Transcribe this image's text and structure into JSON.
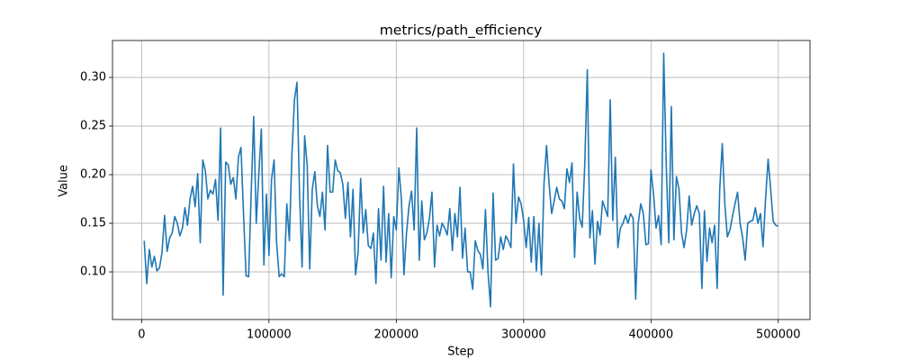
{
  "chart_data": {
    "type": "line",
    "title": "metrics/path_efficiency",
    "xlabel": "Step",
    "ylabel": "Value",
    "color": "#1f77b4",
    "grid": true,
    "xlim": [
      -22900,
      524900
    ],
    "ylim": [
      0.051,
      0.338
    ],
    "xticks": [
      0,
      100000,
      200000,
      300000,
      400000,
      500000
    ],
    "yticks": [
      {
        "value": 0.1,
        "label": "0.10"
      },
      {
        "value": 0.15,
        "label": "0.15"
      },
      {
        "value": 0.2,
        "label": "0.20"
      },
      {
        "value": 0.25,
        "label": "0.25"
      },
      {
        "value": 0.3,
        "label": "0.30"
      }
    ],
    "x": [
      2000,
      4000,
      6000,
      8000,
      10000,
      12000,
      14000,
      16000,
      18000,
      20000,
      22000,
      24000,
      26000,
      28000,
      30000,
      32000,
      34000,
      36000,
      38000,
      40000,
      42000,
      44000,
      46000,
      48000,
      50000,
      52000,
      54000,
      56000,
      58000,
      60000,
      62000,
      64000,
      66000,
      68000,
      70000,
      72000,
      74000,
      76000,
      78000,
      80000,
      82000,
      84000,
      86000,
      88000,
      90000,
      92000,
      94000,
      96000,
      98000,
      100000,
      102000,
      104000,
      106000,
      108000,
      110000,
      112000,
      114000,
      116000,
      118000,
      120000,
      122000,
      124000,
      126000,
      128000,
      130000,
      132000,
      134000,
      136000,
      138000,
      140000,
      142000,
      144000,
      146000,
      148000,
      150000,
      152000,
      154000,
      156000,
      158000,
      160000,
      162000,
      164000,
      166000,
      168000,
      170000,
      172000,
      174000,
      176000,
      178000,
      180000,
      182000,
      184000,
      186000,
      188000,
      190000,
      192000,
      194000,
      196000,
      198000,
      200000,
      202000,
      204000,
      206000,
      208000,
      210000,
      212000,
      214000,
      216000,
      218000,
      220000,
      222000,
      224000,
      226000,
      228000,
      230000,
      232000,
      234000,
      236000,
      238000,
      240000,
      242000,
      244000,
      246000,
      248000,
      250000,
      252000,
      254000,
      256000,
      258000,
      260000,
      262000,
      264000,
      266000,
      268000,
      270000,
      272000,
      274000,
      276000,
      278000,
      280000,
      282000,
      284000,
      286000,
      288000,
      290000,
      292000,
      294000,
      296000,
      298000,
      300000,
      302000,
      304000,
      306000,
      308000,
      310000,
      312000,
      314000,
      316000,
      318000,
      320000,
      322000,
      324000,
      326000,
      328000,
      330000,
      332000,
      334000,
      336000,
      338000,
      340000,
      342000,
      344000,
      346000,
      348000,
      350000,
      352000,
      354000,
      356000,
      358000,
      360000,
      362000,
      364000,
      366000,
      368000,
      370000,
      372000,
      374000,
      376000,
      378000,
      380000,
      382000,
      384000,
      386000,
      388000,
      390000,
      392000,
      394000,
      396000,
      398000,
      400000,
      402000,
      404000,
      406000,
      408000,
      410000,
      412000,
      414000,
      416000,
      418000,
      420000,
      422000,
      424000,
      426000,
      428000,
      430000,
      432000,
      434000,
      436000,
      438000,
      440000,
      442000,
      444000,
      446000,
      448000,
      450000,
      452000,
      454000,
      456000,
      458000,
      460000,
      462000,
      464000,
      466000,
      468000,
      470000,
      472000,
      474000,
      476000,
      478000,
      480000,
      482000,
      484000,
      486000,
      488000,
      490000,
      492000,
      494000,
      496000,
      498000,
      500000
    ],
    "values": [
      0.132,
      0.088,
      0.123,
      0.105,
      0.116,
      0.101,
      0.104,
      0.12,
      0.158,
      0.121,
      0.135,
      0.14,
      0.157,
      0.15,
      0.137,
      0.145,
      0.166,
      0.148,
      0.175,
      0.188,
      0.167,
      0.201,
      0.13,
      0.215,
      0.204,
      0.175,
      0.184,
      0.18,
      0.195,
      0.153,
      0.248,
      0.076,
      0.213,
      0.21,
      0.19,
      0.197,
      0.175,
      0.218,
      0.228,
      0.16,
      0.096,
      0.095,
      0.18,
      0.26,
      0.15,
      0.2,
      0.247,
      0.107,
      0.18,
      0.117,
      0.195,
      0.215,
      0.13,
      0.095,
      0.098,
      0.095,
      0.17,
      0.132,
      0.22,
      0.277,
      0.295,
      0.18,
      0.105,
      0.24,
      0.21,
      0.103,
      0.185,
      0.203,
      0.168,
      0.157,
      0.182,
      0.143,
      0.23,
      0.182,
      0.182,
      0.215,
      0.204,
      0.202,
      0.19,
      0.155,
      0.192,
      0.136,
      0.185,
      0.097,
      0.12,
      0.196,
      0.14,
      0.164,
      0.127,
      0.124,
      0.14,
      0.088,
      0.165,
      0.112,
      0.188,
      0.11,
      0.16,
      0.094,
      0.157,
      0.143,
      0.207,
      0.175,
      0.097,
      0.14,
      0.168,
      0.183,
      0.143,
      0.248,
      0.112,
      0.173,
      0.133,
      0.14,
      0.155,
      0.182,
      0.105,
      0.148,
      0.137,
      0.15,
      0.145,
      0.138,
      0.165,
      0.122,
      0.16,
      0.136,
      0.187,
      0.114,
      0.145,
      0.1,
      0.1,
      0.082,
      0.132,
      0.122,
      0.118,
      0.103,
      0.164,
      0.1,
      0.064,
      0.181,
      0.112,
      0.114,
      0.136,
      0.123,
      0.137,
      0.132,
      0.125,
      0.211,
      0.15,
      0.177,
      0.17,
      0.153,
      0.125,
      0.156,
      0.11,
      0.157,
      0.101,
      0.15,
      0.097,
      0.191,
      0.23,
      0.19,
      0.16,
      0.173,
      0.187,
      0.175,
      0.173,
      0.165,
      0.206,
      0.192,
      0.212,
      0.115,
      0.182,
      0.155,
      0.146,
      0.21,
      0.308,
      0.135,
      0.163,
      0.108,
      0.152,
      0.138,
      0.173,
      0.165,
      0.157,
      0.277,
      0.153,
      0.218,
      0.125,
      0.145,
      0.15,
      0.158,
      0.15,
      0.16,
      0.155,
      0.072,
      0.15,
      0.17,
      0.16,
      0.128,
      0.129,
      0.205,
      0.18,
      0.145,
      0.158,
      0.128,
      0.325,
      0.21,
      0.13,
      0.27,
      0.133,
      0.198,
      0.185,
      0.14,
      0.125,
      0.143,
      0.178,
      0.148,
      0.16,
      0.168,
      0.16,
      0.083,
      0.163,
      0.111,
      0.145,
      0.13,
      0.148,
      0.083,
      0.185,
      0.232,
      0.17,
      0.136,
      0.143,
      0.157,
      0.17,
      0.182,
      0.15,
      0.135,
      0.112,
      0.15,
      0.152,
      0.153,
      0.166,
      0.15,
      0.16,
      0.126,
      0.175,
      0.216,
      0.185,
      0.152,
      0.148,
      0.147
    ]
  }
}
